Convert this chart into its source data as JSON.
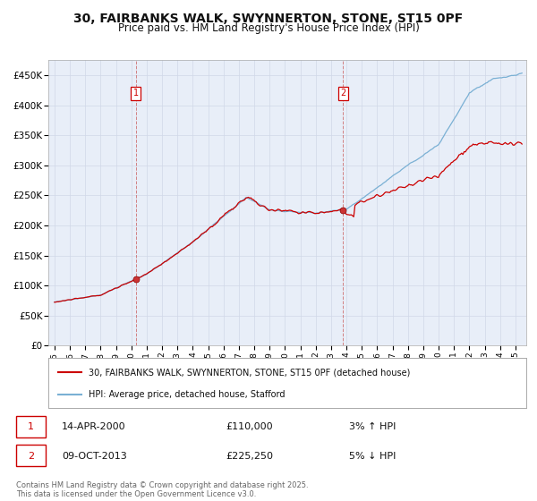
{
  "title": "30, FAIRBANKS WALK, SWYNNERTON, STONE, ST15 0PF",
  "subtitle": "Price paid vs. HM Land Registry's House Price Index (HPI)",
  "ylim": [
    0,
    475000
  ],
  "yticks": [
    0,
    50000,
    100000,
    150000,
    200000,
    250000,
    300000,
    350000,
    400000,
    450000
  ],
  "ytick_labels": [
    "£0",
    "£50K",
    "£100K",
    "£150K",
    "£200K",
    "£250K",
    "£300K",
    "£350K",
    "£400K",
    "£450K"
  ],
  "line_color_red": "#cc0000",
  "line_color_blue": "#7ab0d4",
  "bg_color": "#ffffff",
  "grid_color": "#d0d8e8",
  "plot_bg_color": "#e8eef8",
  "sale1_date": 2000.28,
  "sale1_price": 110000,
  "sale2_date": 2013.77,
  "sale2_price": 225250,
  "legend_label_red": "30, FAIRBANKS WALK, SWYNNERTON, STONE, ST15 0PF (detached house)",
  "legend_label_blue": "HPI: Average price, detached house, Stafford",
  "ann1_date": "14-APR-2000",
  "ann1_price": "£110,000",
  "ann1_hpi": "3% ↑ HPI",
  "ann2_date": "09-OCT-2013",
  "ann2_price": "£225,250",
  "ann2_hpi": "5% ↓ HPI",
  "footer": "Contains HM Land Registry data © Crown copyright and database right 2025.\nThis data is licensed under the Open Government Licence v3.0."
}
